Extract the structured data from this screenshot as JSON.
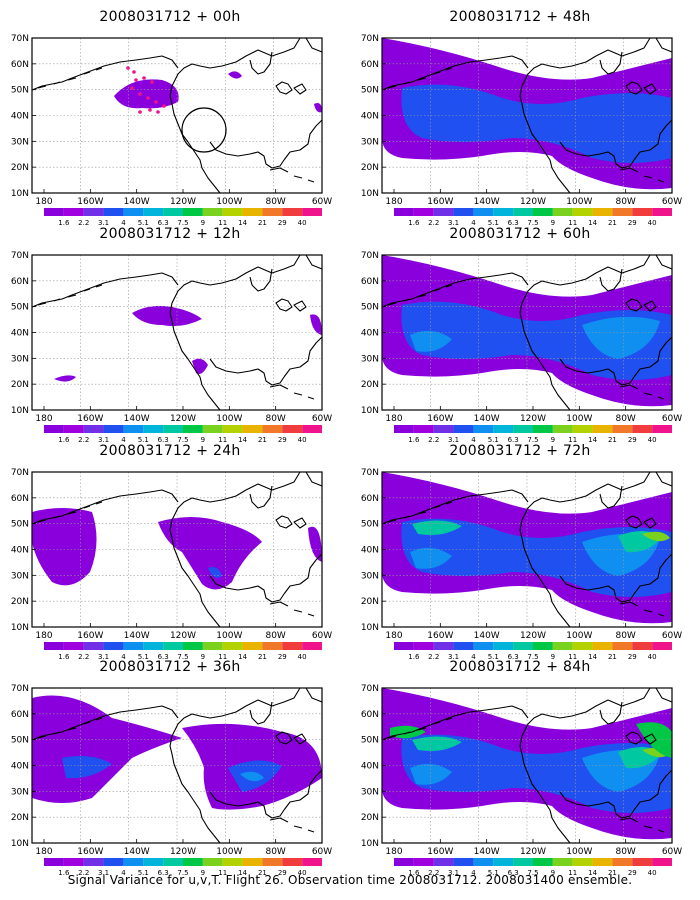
{
  "figure": {
    "caption": "Signal Variance for u,v,T. Flight 26. Observation time 2008031712. 2008031400 ensemble."
  },
  "axes": {
    "lat_labels": [
      "70N",
      "60N",
      "50N",
      "40N",
      "30N",
      "20N",
      "10N"
    ],
    "lon_labels": [
      "180",
      "160W",
      "140W",
      "120W",
      "100W",
      "80W",
      "60W"
    ]
  },
  "colorbar": {
    "labels": [
      "1.6",
      "2.2",
      "3.1",
      "4",
      "5.1",
      "6.3",
      "7.5",
      "9",
      "11",
      "14",
      "21",
      "29",
      "40"
    ],
    "colors": [
      "#8a00dc",
      "#a000e0",
      "#7030e8",
      "#2050f0",
      "#0f90f0",
      "#00b4dc",
      "#00c8a0",
      "#00c846",
      "#7ad21e",
      "#b4d200",
      "#e8b400",
      "#f07828",
      "#f03c3c",
      "#f0148c"
    ]
  },
  "panels": [
    {
      "id": "00h",
      "title": "2008031712 + 00h",
      "col": 0,
      "row": 0,
      "level": 0
    },
    {
      "id": "48h",
      "title": "2008031712 + 48h",
      "col": 1,
      "row": 0,
      "level": 4
    },
    {
      "id": "12h",
      "title": "2008031712 + 12h",
      "col": 0,
      "row": 1,
      "level": 1
    },
    {
      "id": "60h",
      "title": "2008031712 + 60h",
      "col": 1,
      "row": 1,
      "level": 5
    },
    {
      "id": "24h",
      "title": "2008031712 + 24h",
      "col": 0,
      "row": 2,
      "level": 2
    },
    {
      "id": "72h",
      "title": "2008031712 + 72h",
      "col": 1,
      "row": 2,
      "level": 6
    },
    {
      "id": "36h",
      "title": "2008031712 + 36h",
      "col": 0,
      "row": 3,
      "level": 3
    },
    {
      "id": "84h",
      "title": "2008031712 + 84h",
      "col": 1,
      "row": 3,
      "level": 7
    }
  ]
}
